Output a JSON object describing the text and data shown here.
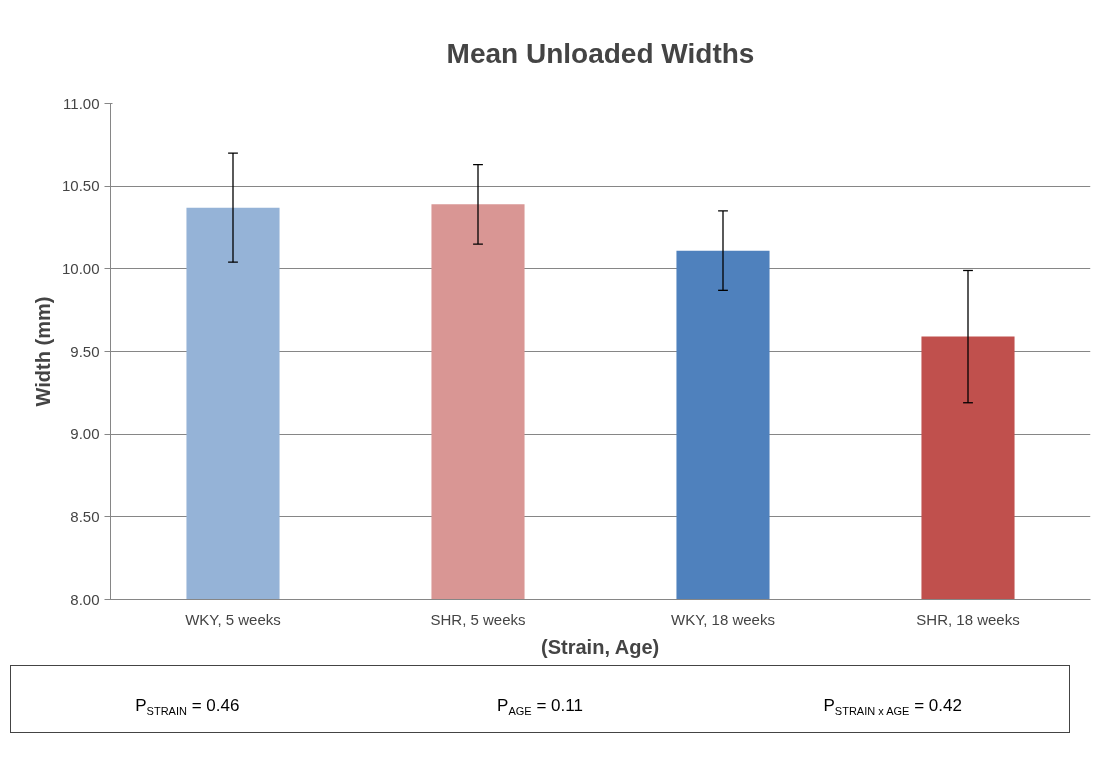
{
  "chart_data": {
    "type": "bar",
    "title": "Mean Unloaded Widths",
    "xlabel": "(Strain, Age)",
    "ylabel": "Width (mm)",
    "categories": [
      "WKY, 5 weeks",
      "SHR, 5 weeks",
      "WKY, 18 weeks",
      "SHR, 18 weeks"
    ],
    "values": [
      10.37,
      10.39,
      10.11,
      9.59
    ],
    "errors": [
      0.33,
      0.24,
      0.24,
      0.4
    ],
    "colors": [
      "#95b3d7",
      "#d99694",
      "#4f81bd",
      "#c0504d"
    ],
    "ylim": [
      8,
      11
    ],
    "yticks": [
      {
        "value": 8,
        "label": "8.00"
      },
      {
        "value": 8.5,
        "label": "8.50"
      },
      {
        "value": 9,
        "label": "9.00"
      },
      {
        "value": 9.5,
        "label": "9.50"
      },
      {
        "value": 10,
        "label": "10.00"
      },
      {
        "value": 10.5,
        "label": "10.50"
      },
      {
        "value": 11,
        "label": "11.00"
      }
    ],
    "grid": "y",
    "annotations": [
      "P$_{STRAIN}$ = 0.46",
      "P$_{AGE}$ = 0.11",
      "P$_{STRAIN x AGE}$ = 0.42"
    ]
  }
}
